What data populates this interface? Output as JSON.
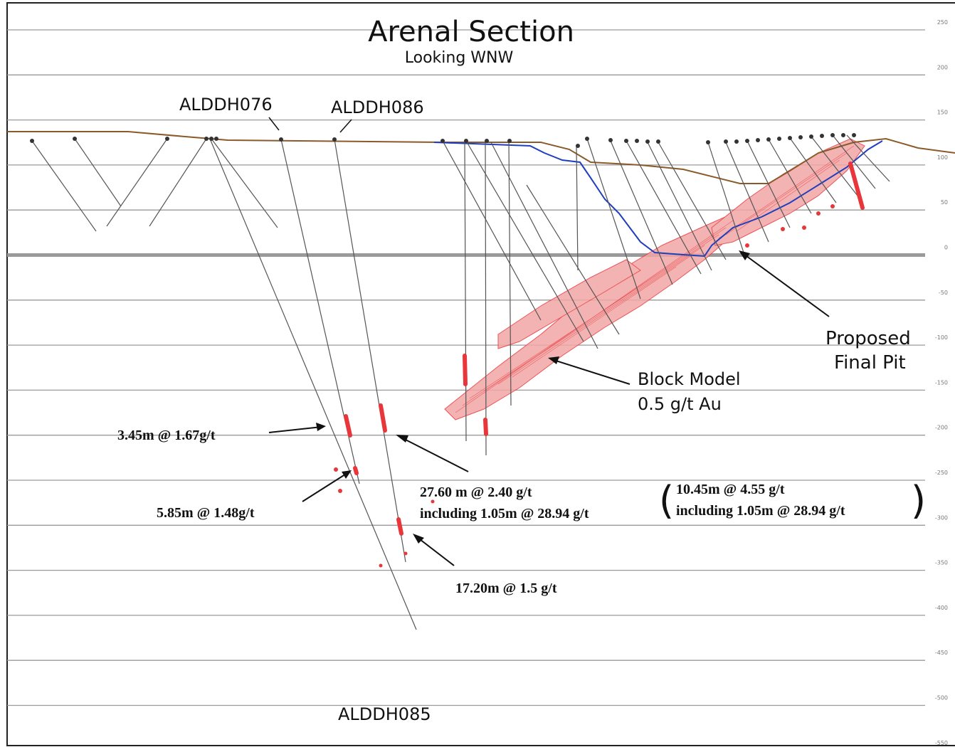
{
  "title": "Arenal Section",
  "subtitle": "Looking WNW",
  "elevation_ticks": [
    "250",
    "200",
    "150",
    "100",
    "50",
    "0",
    "-50",
    "-100",
    "-150",
    "-200",
    "-250",
    "-300",
    "-350",
    "-400",
    "-450",
    "-500",
    "-550"
  ],
  "holes": {
    "aldhd076": "ALDDH076",
    "aldhd086": "ALDDH086",
    "aldhd085": "ALDDH085"
  },
  "intercepts": {
    "i1": "3.45m @ 1.67g/t",
    "i2": "5.85m @ 1.48g/t",
    "i3_line1": "27.60 m @ 2.40 g/t",
    "i3_line2": "including 1.05m @ 28.94 g/t",
    "i4_line1": "10.45m @ 4.55 g/t",
    "i4_line2": "including 1.05m @ 28.94 g/t",
    "i5": "17.20m @ 1.5 g/t"
  },
  "annotations": {
    "block_model_l1": "Block Model",
    "block_model_l2": "0.5 g/t Au",
    "pit_l1": "Proposed",
    "pit_l2": "Final Pit"
  },
  "colors": {
    "topography": "#8b5a2b",
    "pit_outline": "#1f3fbf",
    "ore_body": "#e8363a",
    "drill_trace": "#555555",
    "grid": "#9a9a9a"
  }
}
